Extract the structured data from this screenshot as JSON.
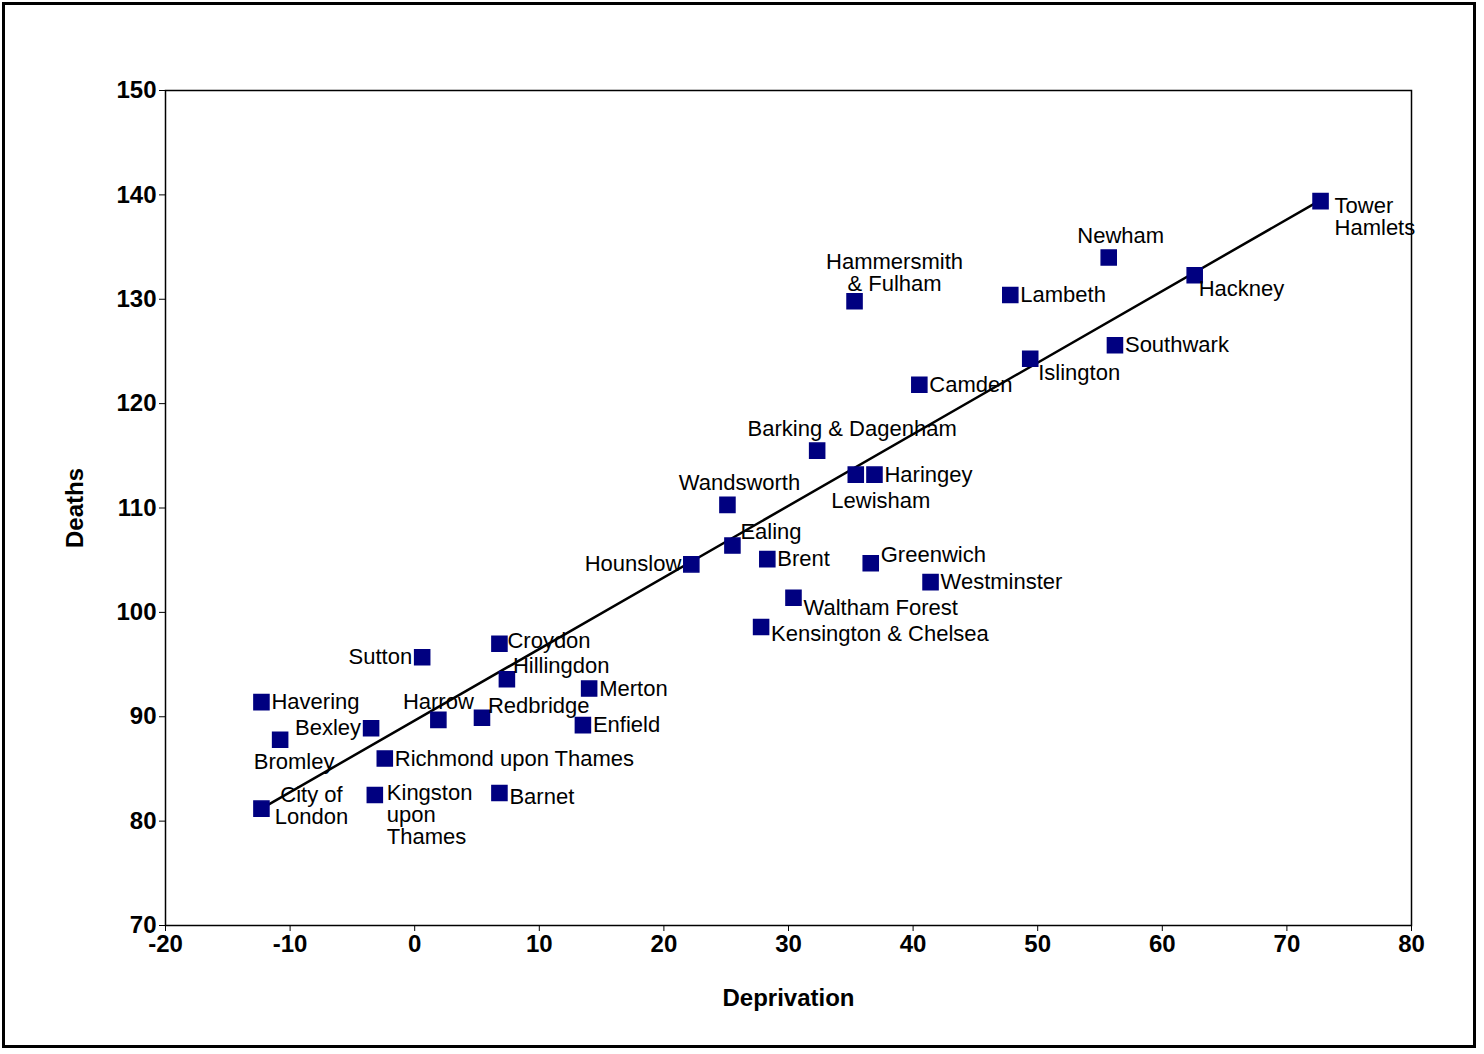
{
  "chart_data": {
    "type": "scatter",
    "x_label": "Deprivation",
    "y_label": "Deaths",
    "xlim": [
      -20,
      80
    ],
    "ylim": [
      70,
      150
    ],
    "xticks": [
      -20,
      -10,
      0,
      10,
      20,
      30,
      40,
      50,
      60,
      70,
      80
    ],
    "yticks": [
      70,
      80,
      90,
      100,
      110,
      120,
      130,
      140,
      150
    ],
    "grid": false,
    "marker": "square",
    "color": "#000080",
    "labels": [
      "Tower Hamlets",
      "Newham",
      "Hackney",
      "Lambeth",
      "Hammersmith & Fulham",
      "Southwark",
      "Islington",
      "Camden",
      "Barking & Dagenham",
      "Lewisham",
      "Haringey",
      "Wandsworth",
      "Ealing",
      "Hounslow",
      "Brent",
      "Greenwich",
      "Westminster",
      "Waltham Forest",
      "Kensington & Chelsea",
      "Croydon",
      "Sutton",
      "Hillingdon",
      "Merton",
      "Havering",
      "Enfield",
      "Redbridge",
      "Harrow",
      "Bexley",
      "Bromley",
      "Richmond upon Thames",
      "Kingston upon Thames",
      "Barnet",
      "City of London"
    ],
    "x": [
      72.7,
      55.7,
      62.6,
      47.8,
      35.3,
      56.2,
      49.4,
      40.5,
      32.3,
      35.4,
      36.9,
      25.1,
      25.5,
      22.2,
      28.3,
      36.6,
      41.4,
      30.4,
      27.8,
      6.8,
      0.6,
      7.4,
      14.0,
      -12.3,
      13.5,
      5.4,
      1.9,
      -3.5,
      -10.8,
      -2.4,
      -3.2,
      6.8,
      -12.3
    ],
    "y": [
      139.4,
      134.0,
      132.3,
      130.4,
      129.8,
      125.6,
      124.3,
      121.8,
      115.5,
      113.2,
      113.2,
      110.3,
      106.4,
      104.6,
      105.1,
      104.7,
      102.9,
      101.4,
      98.6,
      97.0,
      95.7,
      93.6,
      92.7,
      91.4,
      89.2,
      89.9,
      89.7,
      88.9,
      87.8,
      86.0,
      82.5,
      82.7,
      81.2
    ],
    "trend_line": {
      "x": [
        -12.3,
        72.7
      ],
      "y": [
        81.2,
        139.5
      ]
    }
  }
}
